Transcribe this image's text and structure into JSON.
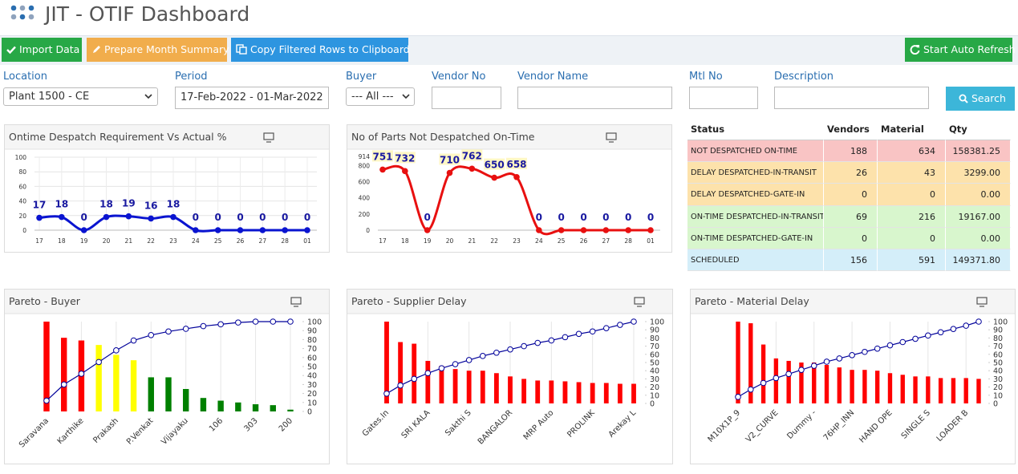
{
  "header": {
    "title": "JIT - OTIF Dashboard"
  },
  "toolbar": {
    "buttons": [
      "Import Data",
      "Prepare Month Summary",
      "Copy Filtered Rows to Clipboard"
    ],
    "refresh": "Start Auto Refresh"
  },
  "filters": {
    "location": {
      "label": "Location",
      "value": "Plant 1500 - CE"
    },
    "period": {
      "label": "Period",
      "value": "17-Feb-2022 - 01-Mar-2022"
    },
    "buyer": {
      "label": "Buyer",
      "value": "--- All ---"
    },
    "vendor_no": {
      "label": "Vendor No"
    },
    "vendor_name": {
      "label": "Vendor Name"
    },
    "mtl_no": {
      "label": "Mtl No"
    },
    "description": {
      "label": "Description"
    },
    "search": "Search"
  },
  "table": {
    "columns": [
      "Status",
      "Vendors",
      "Material",
      "Qty"
    ],
    "rows": [
      [
        "NOT DESPATCHED ON-TIME",
        "188",
        "634",
        "158381.25"
      ],
      [
        "DELAY DESPATCHED-IN-TRANSIT",
        "26",
        "43",
        "3299.00"
      ],
      [
        "DELAY DESPATCHED-GATE-IN",
        "0",
        "0",
        "0.00"
      ],
      [
        "ON-TIME DESPATCHED-IN-TRANSIT",
        "69",
        "216",
        "19167.00"
      ],
      [
        "ON-TIME DESPATCHED-GATE-IN",
        "0",
        "0",
        "0.00"
      ],
      [
        "SCHEDULED",
        "156",
        "591",
        "149371.80"
      ]
    ],
    "row_colors": [
      "#f9c4c4",
      "#fde2ab",
      "#fde2ab",
      "#d8f6cd",
      "#d8f6cd",
      "#d4eef9"
    ]
  },
  "chart_data": [
    {
      "type": "line",
      "title": "Ontime Despatch Requirement Vs Actual %",
      "categories": [
        "17",
        "18",
        "19",
        "20",
        "21",
        "22",
        "23",
        "24",
        "25",
        "26",
        "27",
        "28",
        "01"
      ],
      "values": [
        17,
        18,
        0,
        18,
        19,
        16,
        18,
        0,
        0,
        0,
        0,
        0,
        0
      ],
      "color": "#0a14d0",
      "ylim": [
        0,
        100
      ],
      "yticks": [
        0,
        20,
        40,
        60,
        80,
        100
      ],
      "grid": true
    },
    {
      "type": "line",
      "title": "No of Parts Not Despatched On-Time",
      "categories": [
        "17",
        "18",
        "19",
        "20",
        "21",
        "22",
        "23",
        "24",
        "25",
        "26",
        "27",
        "28",
        "01"
      ],
      "values": [
        751,
        732,
        0,
        710,
        762,
        650,
        658,
        0,
        0,
        0,
        0,
        0,
        0
      ],
      "color": "#e81010",
      "ylim": [
        0,
        914
      ],
      "yticks": [
        0,
        200,
        400,
        600,
        800,
        914
      ],
      "grid": false,
      "label_background": "#fff7c4"
    },
    {
      "type": "pareto",
      "title": "Pareto - Buyer",
      "categories": [
        "Saravana",
        null,
        "Karthike",
        null,
        "Prakash",
        null,
        "P.Venkat",
        null,
        "Vijayaku",
        null,
        "106",
        null,
        "303",
        null,
        "200"
      ],
      "values": [
        100,
        82,
        79,
        74,
        63,
        57,
        38,
        38,
        25,
        15,
        12,
        10,
        8,
        7,
        2
      ],
      "colors": [
        "#ff0000",
        "#ff0000",
        "#ff0000",
        "#ffff00",
        "#ffff00",
        "#ffff00",
        "#008000",
        "#008000",
        "#008000",
        "#008000",
        "#008000",
        "#008000",
        "#008000",
        "#008000",
        "#008000"
      ],
      "cumulative": [
        12,
        30,
        42,
        55,
        68,
        79,
        85,
        89,
        92,
        95,
        97,
        99,
        100,
        100,
        100
      ],
      "line_color": "#00009a",
      "ylim": [
        0,
        100
      ],
      "y2lim": [
        0,
        100
      ],
      "y2ticks": [
        0,
        10,
        20,
        30,
        40,
        50,
        60,
        70,
        80,
        90,
        100
      ]
    },
    {
      "type": "pareto",
      "title": "Pareto - Supplier Delay",
      "categories": [
        "Gates.In",
        null,
        null,
        "SRI KALA",
        null,
        null,
        "Sakthi S",
        null,
        null,
        "BANGALOR",
        null,
        null,
        "MRP Auto",
        null,
        null,
        "PROLINK",
        null,
        null,
        "Arekay L"
      ],
      "values": [
        100,
        75,
        73,
        52,
        46,
        42,
        40,
        40,
        37,
        33,
        30,
        28,
        28,
        27,
        26,
        25,
        25,
        24,
        24
      ],
      "color": "#ff0000",
      "cumulative": [
        12,
        22,
        30,
        37,
        43,
        48,
        53,
        58,
        62,
        66,
        70,
        74,
        77,
        81,
        85,
        88,
        92,
        96,
        100
      ],
      "line_color": "#00009a",
      "ylim": [
        0,
        100
      ],
      "y2lim": [
        0,
        100
      ],
      "y2ticks": [
        0,
        10,
        20,
        30,
        40,
        50,
        60,
        70,
        80,
        90,
        100
      ]
    },
    {
      "type": "pareto",
      "title": "Pareto - Material Delay",
      "categories": [
        "M10X1P_9",
        null,
        null,
        "V2_CURVE",
        null,
        null,
        "Dummy -",
        null,
        null,
        "76HP_INN",
        null,
        null,
        "HAND OPE",
        null,
        null,
        "SINGLE S",
        null,
        null,
        "LOADER B",
        null
      ],
      "values": [
        100,
        98,
        72,
        55,
        52,
        50,
        50,
        47,
        44,
        41,
        41,
        40,
        37,
        35,
        33,
        33,
        31,
        31,
        31,
        30
      ],
      "color": "#ff0000",
      "cumulative": [
        8,
        17,
        25,
        31,
        36,
        41,
        46,
        51,
        55,
        59,
        63,
        67,
        71,
        75,
        79,
        83,
        87,
        91,
        95,
        100
      ],
      "line_color": "#00009a",
      "ylim": [
        0,
        100
      ],
      "y2lim": [
        0,
        100
      ],
      "y2ticks": [
        0,
        10,
        20,
        30,
        40,
        50,
        60,
        70,
        80,
        90,
        100
      ]
    }
  ]
}
